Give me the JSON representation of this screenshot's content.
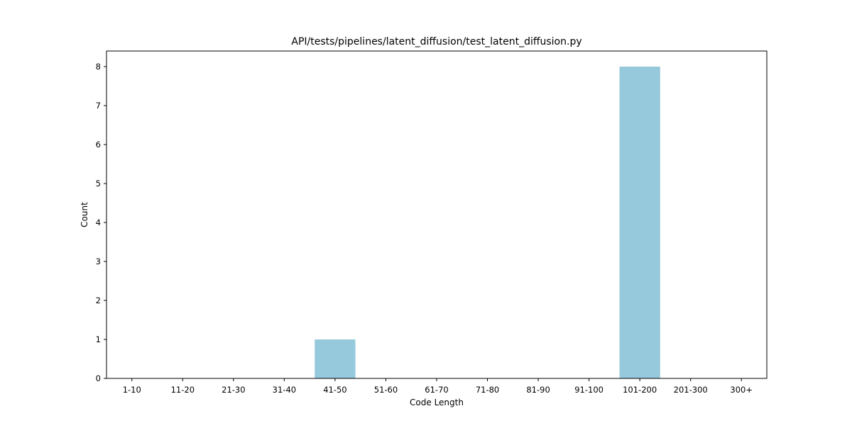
{
  "chart_data": {
    "type": "bar",
    "title": "API/tests/pipelines/latent_diffusion/test_latent_diffusion.py",
    "xlabel": "Code Length",
    "ylabel": "Count",
    "categories": [
      "1-10",
      "11-20",
      "21-30",
      "31-40",
      "41-50",
      "51-60",
      "61-70",
      "71-80",
      "81-90",
      "91-100",
      "101-200",
      "201-300",
      "300+"
    ],
    "values": [
      0,
      0,
      0,
      0,
      1,
      0,
      0,
      0,
      0,
      0,
      8,
      0,
      0
    ],
    "ylim": [
      0,
      8.4
    ],
    "yticks": [
      0,
      1,
      2,
      3,
      4,
      5,
      6,
      7,
      8
    ],
    "bar_color": "#96c9dc",
    "grid": false,
    "legend": "none"
  }
}
